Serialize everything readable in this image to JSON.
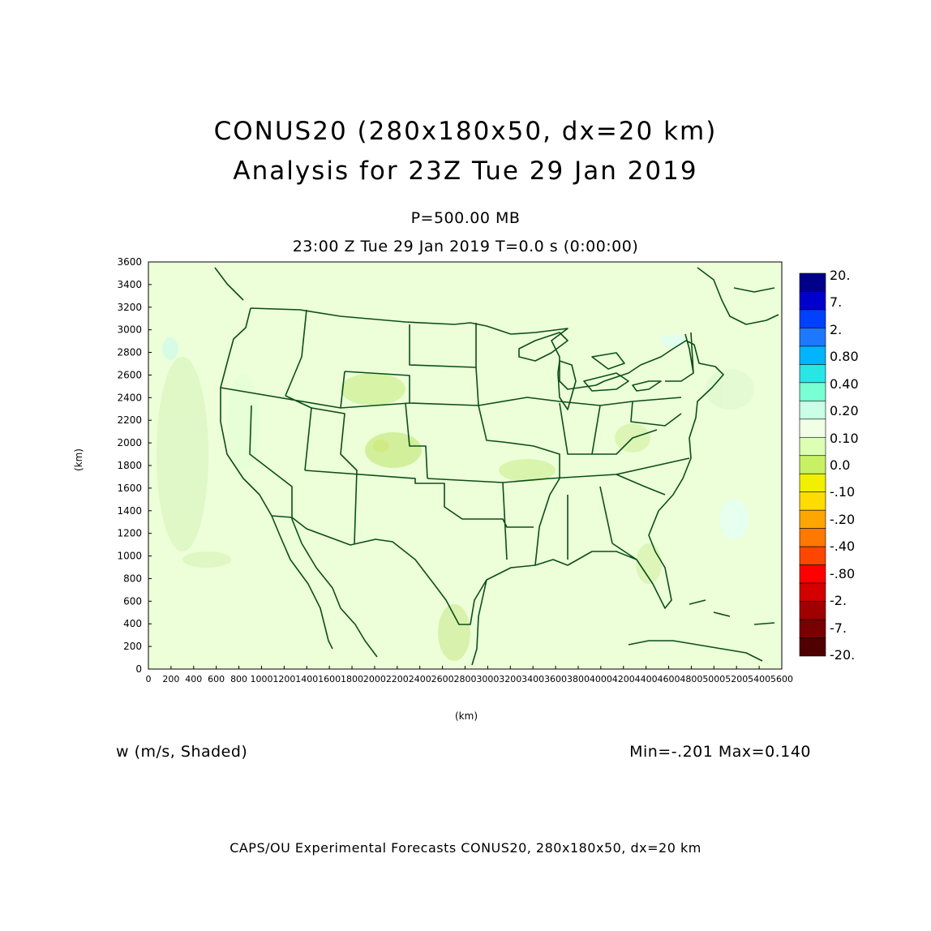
{
  "titles": {
    "main": "CONUS20 (280x180x50, dx=20 km)",
    "analysis": "Analysis for 23Z Tue 29 Jan 2019",
    "level": "P=500.00 MB",
    "time": "23:00 Z Tue 29 Jan 2019   T=0.0 s (0:00:00)"
  },
  "axes": {
    "x_label": "(km)",
    "y_label": "(km)",
    "x_ticks": [
      "0",
      "200",
      "400",
      "600",
      "800",
      "1000",
      "1200",
      "1400",
      "1600",
      "1800",
      "2000",
      "2200",
      "2400",
      "2600",
      "2800",
      "3000",
      "3200",
      "3400",
      "3600",
      "3800",
      "4000",
      "4200",
      "4400",
      "4600",
      "4800",
      "5000",
      "5200",
      "5400",
      "5600"
    ],
    "y_ticks": [
      "0",
      "200",
      "400",
      "600",
      "800",
      "1000",
      "1200",
      "1400",
      "1600",
      "1800",
      "2000",
      "2200",
      "2400",
      "2600",
      "2800",
      "3000",
      "3200",
      "3400",
      "3600"
    ],
    "x_range": [
      0,
      5600
    ],
    "y_range": [
      0,
      3600
    ]
  },
  "field": {
    "label": "w (m/s, Shaded)",
    "minmax": "Min=-.201 Max=0.140"
  },
  "colorbar": {
    "labels": [
      "20.",
      "7.",
      "2.",
      "0.80",
      "0.40",
      "0.20",
      "0.10",
      "0.0",
      "-.10",
      "-.20",
      "-.40",
      "-.80",
      "-2.",
      "-7.",
      "-20."
    ],
    "colors": [
      "#00008b",
      "#0000cd",
      "#0040ff",
      "#1e78ff",
      "#00b4ff",
      "#28e6e6",
      "#78ffd2",
      "#c8ffe6",
      "#f0ffe6",
      "#dcffb4",
      "#c8f064",
      "#f0f000",
      "#ffdc00",
      "#ffa500",
      "#ff7800",
      "#ff4600",
      "#ff0000",
      "#d20000",
      "#a00000",
      "#780000",
      "#500000"
    ]
  },
  "footer": "CAPS/OU Experimental Forecasts  CONUS20, 280x180x50, dx=20 km"
}
